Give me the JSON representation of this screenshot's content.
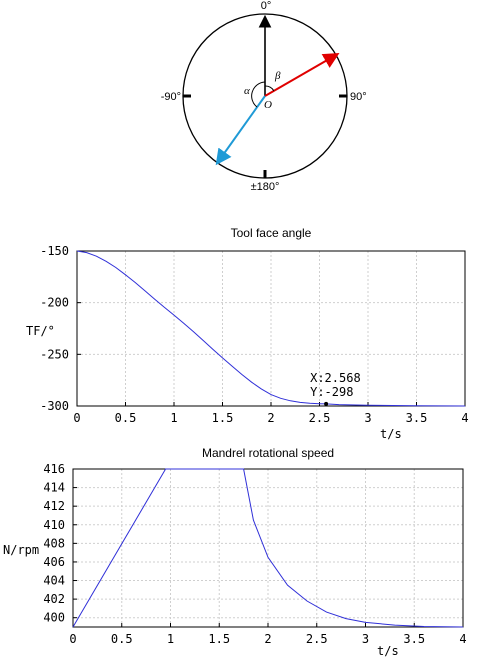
{
  "diagram": {
    "labels": {
      "top": "0°",
      "left": "-90°",
      "right": "90°",
      "bottom": "±180°",
      "origin": "O",
      "alpha": "α",
      "beta": "β"
    },
    "colors": {
      "up_arrow": "#000000",
      "red_arrow": "#e00000",
      "blue_arrow": "#1f9ad6"
    }
  },
  "chart_data": [
    {
      "type": "line",
      "title": "Tool face angle",
      "xlabel": "t/s",
      "ylabel": "TF/°",
      "xlim": [
        0,
        4
      ],
      "ylim": [
        -300,
        -150
      ],
      "xticks": [
        0,
        0.5,
        1,
        1.5,
        2,
        2.5,
        3,
        3.5,
        4
      ],
      "xtick_labels": [
        "0",
        "0.5",
        "1",
        "1.5",
        "2",
        "2.5",
        "3",
        "3.5",
        "4"
      ],
      "yticks": [
        -150,
        -200,
        -250,
        -300
      ],
      "ytick_labels": [
        "-150",
        "-200",
        "-250",
        "-300"
      ],
      "grid": true,
      "line_color": "#3030d8",
      "series": [
        {
          "x": [
            0,
            0.1,
            0.2,
            0.3,
            0.4,
            0.5,
            0.6,
            0.7,
            0.8,
            0.9,
            1.0,
            1.1,
            1.2,
            1.3,
            1.4,
            1.5,
            1.6,
            1.7,
            1.8,
            1.9,
            2.0,
            2.1,
            2.2,
            2.3,
            2.4,
            2.5,
            2.568,
            2.7,
            3.0,
            3.5,
            4.0
          ],
          "y": [
            -150,
            -151.5,
            -155,
            -160,
            -166,
            -173,
            -180.5,
            -188.5,
            -196.5,
            -204.5,
            -212,
            -220,
            -228,
            -236.5,
            -245,
            -253.5,
            -261.5,
            -269.5,
            -277,
            -283.5,
            -289,
            -292.5,
            -295,
            -296.5,
            -297.3,
            -297.8,
            -298,
            -298.6,
            -299.2,
            -299.7,
            -300
          ]
        }
      ],
      "annotation": {
        "x": 2.568,
        "y": -298,
        "line1": "X:2.568",
        "line2": "Y:-298"
      }
    },
    {
      "type": "line",
      "title": "Mandrel rotational speed",
      "xlabel": "t/s",
      "ylabel": "N/rpm",
      "xlim": [
        0,
        4
      ],
      "ylim": [
        399,
        416
      ],
      "xticks": [
        0,
        0.5,
        1,
        1.5,
        2,
        2.5,
        3,
        3.5,
        4
      ],
      "xtick_labels": [
        "0",
        "0.5",
        "1",
        "1.5",
        "2",
        "2.5",
        "3",
        "3.5",
        "4"
      ],
      "yticks": [
        400,
        402,
        404,
        406,
        408,
        410,
        412,
        414,
        416
      ],
      "ytick_labels": [
        "400",
        "402",
        "404",
        "406",
        "408",
        "410",
        "412",
        "414",
        "416"
      ],
      "grid": true,
      "line_color": "#3030d8",
      "series": [
        {
          "x": [
            0,
            0.95,
            1.75,
            1.85,
            2.0,
            2.2,
            2.4,
            2.6,
            2.8,
            3.0,
            3.3,
            3.6,
            4.0
          ],
          "y": [
            399,
            416,
            416,
            410.5,
            406.5,
            403.5,
            401.8,
            400.6,
            399.9,
            399.5,
            399.2,
            399.05,
            399
          ]
        }
      ]
    }
  ]
}
